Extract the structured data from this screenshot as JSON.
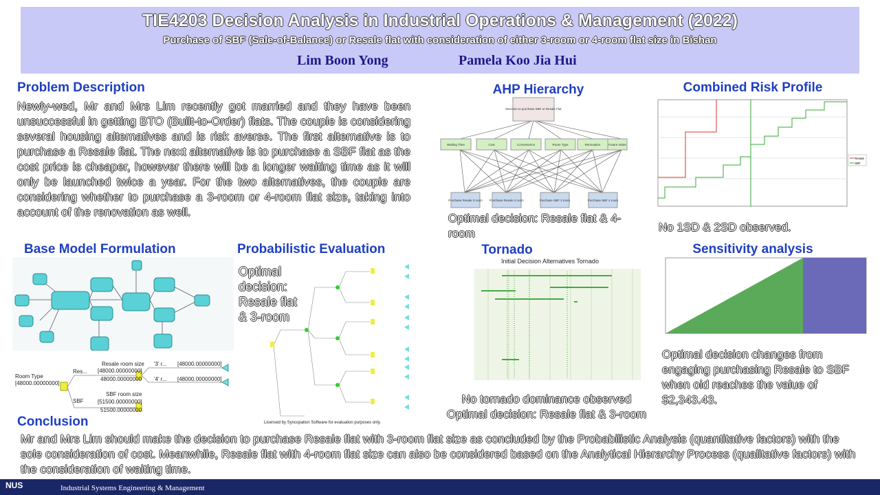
{
  "header": {
    "title": "TIE4203 Decision Analysis in Industrial Operations & Management (2022)",
    "subtitle": "Purchase of SBF (Sale-of-Balance) or Resale flat with consideration of either 3-room or 4-room flat size in Bishan",
    "authors": [
      "Lim Boon Yong",
      "Pamela Koo Jia Hui"
    ]
  },
  "sections": {
    "problem": {
      "heading": "Problem Description",
      "body": "Newly-wed, Mr and Mrs Lim recently got married and they have been unsuccessful in getting BTO (Built-to-Order) flats. The couple is considering several housing alternatives and is risk averse. The first alternative is to purchase a Resale flat. The next alternative is to purchase a SBF flat as the cost price is cheaper, however there will be a longer waiting time as it will only be launched twice a year. For the two alternatives, the couple are considering whether to purchase a 3-room or 4-room flat size, taking into account of the renovation as well."
    },
    "ahp": {
      "heading": "AHP Hierarchy",
      "goal": "Decision to purchase SBF or Resale Flat",
      "criteria": [
        "Waiting Time",
        "Cost",
        "Convenience",
        "Room Type",
        "Renovation",
        "Future Value"
      ],
      "alternatives": [
        "Purchase Resale 3 room",
        "Purchase Resale 4 room",
        "Purchase SBF 3 room",
        "Purchase SBF 4 room"
      ],
      "caption": "Optimal decision: Resale flat & 4-room"
    },
    "risk": {
      "heading": "Combined Risk Profile",
      "legend": [
        "Resale",
        "SBF"
      ],
      "caption": "No 1SD & 2SD observed."
    },
    "base_model": {
      "heading": "Base Model Formulation",
      "tree": {
        "root": "Room Type",
        "root_value": "[48000.00000000]",
        "resale_branch": "Res...",
        "resale_node": "Resale room size",
        "resale_node_value": "[48000.00000000]",
        "resale_value": "48000.00000000",
        "option_3": "'3' r...",
        "option_3_value": "[48000.00000000]",
        "option_4": "'4' r...",
        "option_4_value": "[48000.00000000]",
        "sbf_branch": "SBF",
        "sbf_node": "SBF room size",
        "sbf_node_value": "[51500.00000000]",
        "sbf_value": "51500.00000000"
      }
    },
    "probabilistic": {
      "heading": "Probabilistic  Evaluation",
      "caption": "Optimal decision: Resale flat & 3-room",
      "license": "Licensed by Syncopation Software for evaluation purposes only."
    },
    "tornado": {
      "heading": "Tornado",
      "chart_title": "Initial Decision Alternatives Tornado",
      "caption": [
        "No tornado dominance observed",
        "Optimal decision: Resale flat & 3-room"
      ]
    },
    "sensitivity": {
      "heading": "Sensitivity analysis",
      "caption": "Optimal decision changes from engaging purchasing Resale to SBF when oid reaches the value of $2,343.43."
    },
    "conclusion": {
      "heading": "Conclusion",
      "body": "Mr and Mrs Lim should make the decision to purchase Resale flat with 3-room flat size as concluded by the Probabilistic Analysis (quantitative factors) with the sole consideration of cost. Meanwhile, Resale flat with 4-room flat size can also be considered based on the Analytical Hierarchy Process (qualitative factors) with the consideration of waiting time."
    }
  },
  "footer": {
    "logo": "NUS",
    "department": "Industrial Systems Engineering & Management"
  }
}
